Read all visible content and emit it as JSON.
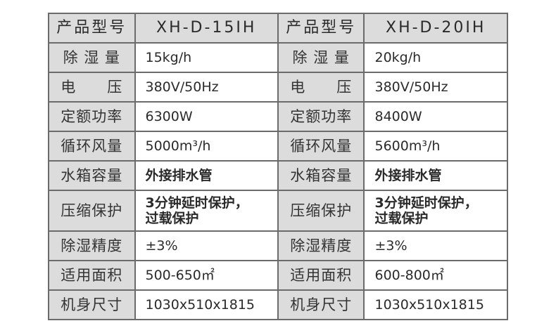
{
  "header": {
    "label": "产品型号",
    "models": [
      "XH-D-15IH",
      "XH-D-20IH"
    ]
  },
  "rows": [
    {
      "label": "除 湿 量",
      "v1": "15kg/h",
      "v2": "20kg/h"
    },
    {
      "label": "电　　压",
      "v1": "380V/50Hz",
      "v2": "380V/50Hz"
    },
    {
      "label": "定额功率",
      "v1": "6300W",
      "v2": "8400W"
    },
    {
      "label": "循环风量",
      "v1": "5000m³/h",
      "v2": "5600m³/h"
    },
    {
      "label": "水箱容量",
      "v1": "外接排水管",
      "v2": "外接排水管"
    },
    {
      "label": "压缩保护",
      "v1": "3分钟延时保护，\n过载保护",
      "v2": "3分钟延时保护，\n过载保护"
    },
    {
      "label": "除湿精度",
      "v1": "±3%",
      "v2": "±3%"
    },
    {
      "label": "适用面积",
      "v1": "500-650㎡",
      "v2": "600-800㎡"
    },
    {
      "label": "机身尺寸",
      "v1": "1030x510x1815",
      "v2": "1030x510x1815"
    }
  ]
}
